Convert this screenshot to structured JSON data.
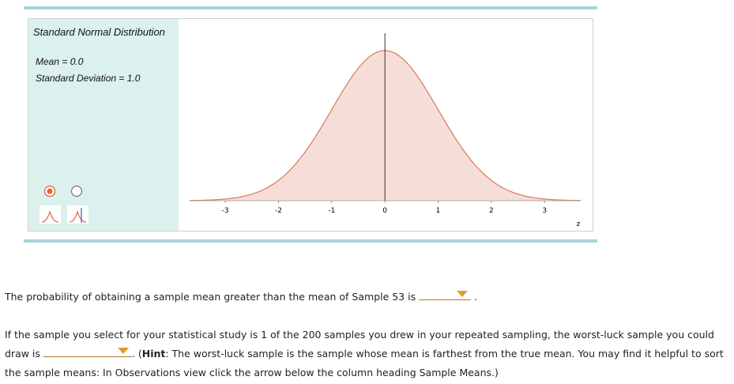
{
  "widget": {
    "title": "Standard Normal Distribution",
    "mean": {
      "value": 0,
      "label": "Mean = 0.0"
    },
    "sd": {
      "value": 1,
      "label": "Standard Deviation = 1.0"
    },
    "xlim": [
      -3.67,
      3.68
    ],
    "xticks": [
      -3,
      -2,
      -1,
      0,
      1,
      2,
      3
    ],
    "xlabel": "z",
    "fill_color": "#f7ddd8",
    "line_color": "#d9785a"
  },
  "question1": {
    "before": "The probability of obtaining a sample mean greater than the mean of Sample 53 is",
    "after": "."
  },
  "question2": {
    "before": "If the sample you select for your statistical study is 1 of the 200 samples you drew in your repeated sampling, the worst-luck sample you could draw is",
    "after_prefix": ". (",
    "hint_bold": "Hint",
    "after": ": The worst-luck sample is the sample whose mean is farthest from the true mean. You may find it helpful to sort the sample means: In Observations view click the arrow below the column heading Sample Means.)"
  }
}
